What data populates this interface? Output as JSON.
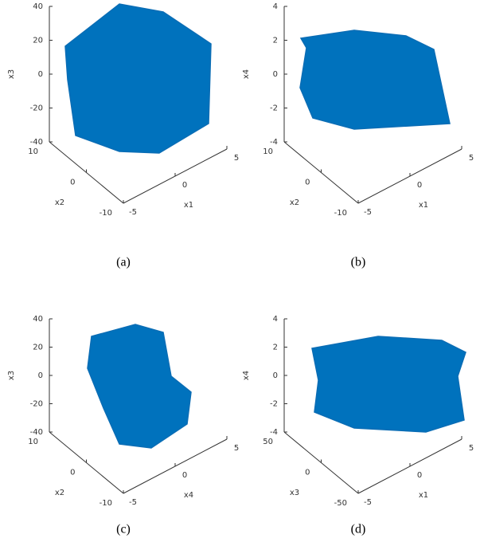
{
  "panels": [
    {
      "caption": "(a)",
      "x": {
        "label": "x1",
        "ticks": [
          -5,
          0,
          5
        ]
      },
      "y": {
        "label": "x2",
        "ticks": [
          -10,
          0,
          10
        ]
      },
      "z": {
        "label": "x3",
        "ticks": [
          -40,
          -20,
          0,
          20,
          40
        ]
      }
    },
    {
      "caption": "(b)",
      "x": {
        "label": "x1",
        "ticks": [
          -5,
          0,
          5
        ]
      },
      "y": {
        "label": "x2",
        "ticks": [
          -10,
          0,
          10
        ]
      },
      "z": {
        "label": "x4",
        "ticks": [
          -4,
          -2,
          0,
          2,
          4
        ]
      }
    },
    {
      "caption": "(c)",
      "x": {
        "label": "x4",
        "ticks": [
          -5,
          0,
          5
        ]
      },
      "y": {
        "label": "x2",
        "ticks": [
          -10,
          0,
          10
        ]
      },
      "z": {
        "label": "x3",
        "ticks": [
          -40,
          -20,
          0,
          20,
          40
        ]
      }
    },
    {
      "caption": "(d)",
      "x": {
        "label": "x1",
        "ticks": [
          -5,
          0,
          5
        ]
      },
      "y": {
        "label": "x3",
        "ticks": [
          -50,
          0,
          50
        ]
      },
      "z": {
        "label": "x4",
        "ticks": [
          -4,
          -2,
          0,
          2,
          4
        ]
      }
    }
  ]
}
